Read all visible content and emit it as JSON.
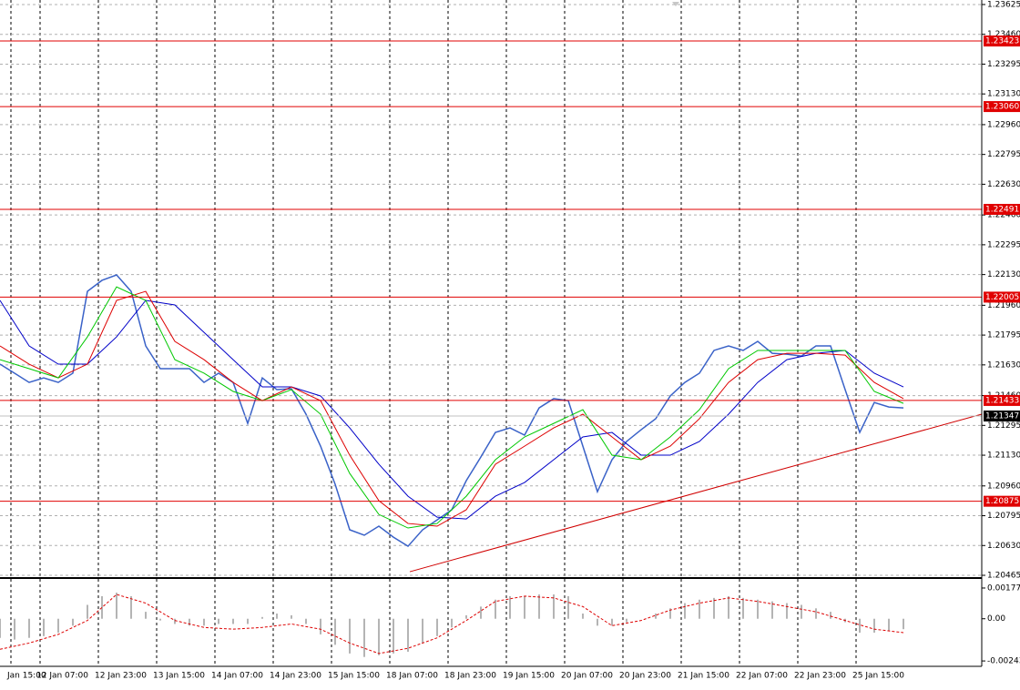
{
  "chart_data": [
    {
      "type": "line",
      "xlim": [
        0,
        269.5
      ],
      "xticks": [
        {
          "value": 3,
          "label": "Jan 15:00"
        },
        {
          "value": 11,
          "label": "12 Jan 07:00"
        },
        {
          "value": 27,
          "label": "12 Jan 23:00"
        },
        {
          "value": 43,
          "label": "13 Jan 15:00"
        },
        {
          "value": 59,
          "label": "14 Jan 07:00"
        },
        {
          "value": 75,
          "label": "14 Jan 23:00"
        },
        {
          "value": 91,
          "label": "15 Jan 15:00"
        },
        {
          "value": 107,
          "label": "18 Jan 07:00"
        },
        {
          "value": 123,
          "label": "18 Jan 23:00"
        },
        {
          "value": 139,
          "label": "19 Jan 15:00"
        },
        {
          "value": 155,
          "label": "20 Jan 07:00"
        },
        {
          "value": 171,
          "label": "20 Jan 23:00"
        },
        {
          "value": 187,
          "label": "21 Jan 15:00"
        },
        {
          "value": 203,
          "label": "22 Jan 07:00"
        },
        {
          "value": 219,
          "label": "22 Jan 23:00"
        },
        {
          "value": 235,
          "label": "25 Jan 15:00"
        }
      ],
      "ylim": [
        1.20455,
        1.2365
      ],
      "yticks": [
        1.23625,
        {
          "value": 1.2346,
          "label": "1.23460"
        },
        1.23295,
        {
          "value": 1.2313,
          "label": "1.23130"
        },
        {
          "value": 1.2296,
          "label": "1.22960"
        },
        1.22795,
        {
          "value": 1.2263,
          "label": "1.22630"
        },
        {
          "value": 1.2246,
          "label": "1.22460"
        },
        1.22295,
        {
          "value": 1.2213,
          "label": "1.22130"
        },
        {
          "value": 1.2196,
          "label": "1.21960"
        },
        1.21795,
        {
          "value": 1.2163,
          "label": "1.21630"
        },
        {
          "value": 1.2146,
          "label": "1.21460"
        },
        1.21295,
        {
          "value": 1.2113,
          "label": "1.21130"
        },
        {
          "value": 1.2096,
          "label": "1.20960"
        },
        1.20795,
        {
          "value": 1.2063,
          "label": "1.20630"
        },
        1.20465
      ],
      "grid": true,
      "series": [
        {
          "color": "#3a62c8",
          "x": [
            0,
            4,
            8,
            12,
            16,
            20,
            24,
            28,
            32,
            36,
            40,
            44,
            48,
            52,
            56,
            60,
            64,
            68,
            72,
            76,
            80,
            84,
            88,
            92,
            96,
            100,
            104,
            108,
            112,
            116,
            120,
            124,
            128,
            132,
            136,
            140,
            144,
            148,
            152,
            156,
            160,
            164,
            168,
            172,
            176,
            180,
            184,
            188,
            192,
            196,
            200,
            204,
            208,
            212,
            216,
            220,
            224,
            228,
            232,
            236,
            240,
            244,
            248
          ],
          "values": [
            1.21634,
            1.21584,
            1.21533,
            1.21558,
            1.21533,
            1.21584,
            1.22037,
            1.22098,
            1.22128,
            1.22037,
            1.21735,
            1.21609,
            1.21609,
            1.21609,
            1.21533,
            1.21584,
            1.21533,
            1.21306,
            1.21558,
            1.21493,
            1.21498,
            1.21357,
            1.2118,
            1.20969,
            1.20717,
            1.20687,
            1.20737,
            1.20676,
            1.20626,
            1.20717,
            1.20772,
            1.20828,
            1.20989,
            1.2112,
            1.21256,
            1.21281,
            1.21241,
            1.21392,
            1.21443,
            1.21432,
            1.2118,
            1.20928,
            1.21105,
            1.21206,
            1.21271,
            1.21332,
            1.21458,
            1.21533,
            1.21584,
            1.2171,
            1.21735,
            1.2171,
            1.2176,
            1.21694,
            1.21689,
            1.21679,
            1.21735,
            1.21735,
            1.21493,
            1.21256,
            1.21422,
            1.21397,
            1.21392
          ]
        },
        {
          "color": "#0000c8",
          "x": [
            0,
            8,
            16,
            24,
            32,
            40,
            48,
            56,
            64,
            72,
            80,
            88,
            96,
            104,
            112,
            120,
            128,
            136,
            144,
            152,
            160,
            168,
            176,
            184,
            192,
            200,
            208,
            216,
            224,
            232,
            240,
            248
          ],
          "values": [
            1.21987,
            1.21735,
            1.21634,
            1.21634,
            1.21785,
            1.21987,
            1.21962,
            1.2181,
            1.21659,
            1.21508,
            1.21508,
            1.21458,
            1.21281,
            1.2108,
            1.20903,
            1.20787,
            1.20777,
            1.20903,
            1.20979,
            1.21105,
            1.21231,
            1.21256,
            1.2113,
            1.2113,
            1.21206,
            1.21357,
            1.21533,
            1.21659,
            1.21694,
            1.2171,
            1.21584,
            1.21508
          ]
        },
        {
          "color": "#dd0000",
          "x": [
            0,
            8,
            16,
            24,
            32,
            40,
            48,
            56,
            64,
            72,
            80,
            88,
            96,
            104,
            112,
            120,
            128,
            136,
            144,
            152,
            160,
            168,
            176,
            184,
            192,
            200,
            208,
            216,
            224,
            232,
            240,
            248
          ],
          "values": [
            1.21735,
            1.21634,
            1.21558,
            1.21634,
            1.21987,
            1.22037,
            1.2176,
            1.21659,
            1.21533,
            1.21432,
            1.21508,
            1.21432,
            1.2113,
            1.20878,
            1.20752,
            1.20737,
            1.20828,
            1.2108,
            1.2118,
            1.21281,
            1.21357,
            1.21231,
            1.21105,
            1.2118,
            1.21332,
            1.21533,
            1.21659,
            1.21694,
            1.21694,
            1.21684,
            1.21533,
            1.21443
          ]
        },
        {
          "color": "#00c800",
          "x": [
            0,
            8,
            16,
            24,
            32,
            40,
            48,
            56,
            64,
            72,
            80,
            88,
            96,
            104,
            112,
            120,
            128,
            136,
            144,
            152,
            160,
            168,
            176,
            184,
            192,
            200,
            208,
            216,
            224,
            232,
            240,
            248
          ],
          "values": [
            1.21659,
            1.21609,
            1.21558,
            1.21785,
            1.22062,
            1.21987,
            1.21659,
            1.21584,
            1.21483,
            1.21432,
            1.21493,
            1.21357,
            1.21029,
            1.20802,
            1.20727,
            1.20752,
            1.20903,
            1.21105,
            1.21231,
            1.21306,
            1.21382,
            1.2113,
            1.21105,
            1.21231,
            1.21382,
            1.21609,
            1.2171,
            1.2171,
            1.2171,
            1.2171,
            1.21483,
            1.21417
          ]
        }
      ],
      "levels": [
        1.23423,
        {
          "value": 1.2306,
          "label": "1.23060"
        },
        1.22491,
        {
          "value": 1.22005,
          "label": "1.22005"
        },
        1.21433,
        1.20875
      ],
      "level_color": "#e00000",
      "current_price": 1.21347,
      "trendline": {
        "x": [
          112.5,
          269.5
        ],
        "values": [
          1.20485,
          1.21357
        ],
        "color": "#d00000"
      }
    },
    {
      "type": "macd",
      "ylim": [
        -0.00274,
        0.00224
      ],
      "yticks": [
        0.00177,
        {
          "value": 0,
          "label": "0.00"
        },
        -0.00243
      ],
      "color": "#b4b4b4",
      "x": [
        0,
        4,
        8,
        12,
        16,
        20,
        24,
        28,
        32,
        36,
        40,
        44,
        48,
        52,
        56,
        60,
        64,
        68,
        72,
        76,
        80,
        84,
        88,
        92,
        96,
        100,
        104,
        108,
        112,
        116,
        120,
        124,
        128,
        132,
        136,
        140,
        144,
        148,
        152,
        156,
        160,
        164,
        168,
        172,
        176,
        180,
        184,
        188,
        192,
        196,
        200,
        204,
        208,
        212,
        216,
        220,
        224,
        228,
        232,
        236,
        240,
        244,
        248
      ],
      "values": [
        -0.0011,
        -0.0012,
        -0.0011,
        -0.001,
        -0.0008,
        -0.0004,
        0.0008,
        0.0013,
        0.0015,
        0.0013,
        0.0004,
        -0.0001,
        -0.0003,
        -0.0004,
        -0.0004,
        -0.0003,
        -0.0003,
        -0.0003,
        0.0001,
        0.0003,
        0.0002,
        -0.0003,
        -0.0009,
        -0.0015,
        -0.002,
        -0.0022,
        -0.0021,
        -0.002,
        -0.0019,
        -0.0014,
        -0.001,
        -0.0005,
        0.0002,
        0.0007,
        0.0011,
        0.0013,
        0.0013,
        0.0014,
        0.0014,
        0.0013,
        0.0003,
        -0.0004,
        -0.0004,
        -0.0002,
        0,
        0.0003,
        0.0006,
        0.0009,
        0.0011,
        0.0012,
        0.0013,
        0.0012,
        0.0011,
        0.001,
        0.0009,
        0.0008,
        0.0006,
        0.0004,
        -0.0002,
        -0.0008,
        -0.0008,
        -0.0007,
        -0.0006
      ],
      "signal": {
        "color": "#dd0000",
        "x": [
          0,
          8,
          16,
          24,
          32,
          40,
          48,
          56,
          64,
          72,
          80,
          88,
          96,
          104,
          112,
          120,
          128,
          136,
          144,
          152,
          160,
          168,
          176,
          184,
          192,
          200,
          208,
          216,
          224,
          232,
          240,
          248
        ],
        "values": [
          -0.00176,
          -0.0014,
          -0.0009,
          -0.0001,
          0.0014,
          0.0009,
          -0.0001,
          -0.0005,
          -0.0006,
          -0.0005,
          -0.0003,
          -0.0006,
          -0.0014,
          -0.002,
          -0.0017,
          -0.0011,
          -0.0001,
          0.001,
          0.0013,
          0.0012,
          0.0007,
          -0.0004,
          -0.0001,
          0.0005,
          0.0009,
          0.0012,
          0.001,
          0.0007,
          0.0004,
          -0.0001,
          -0.0006,
          -0.0008
        ]
      }
    }
  ]
}
